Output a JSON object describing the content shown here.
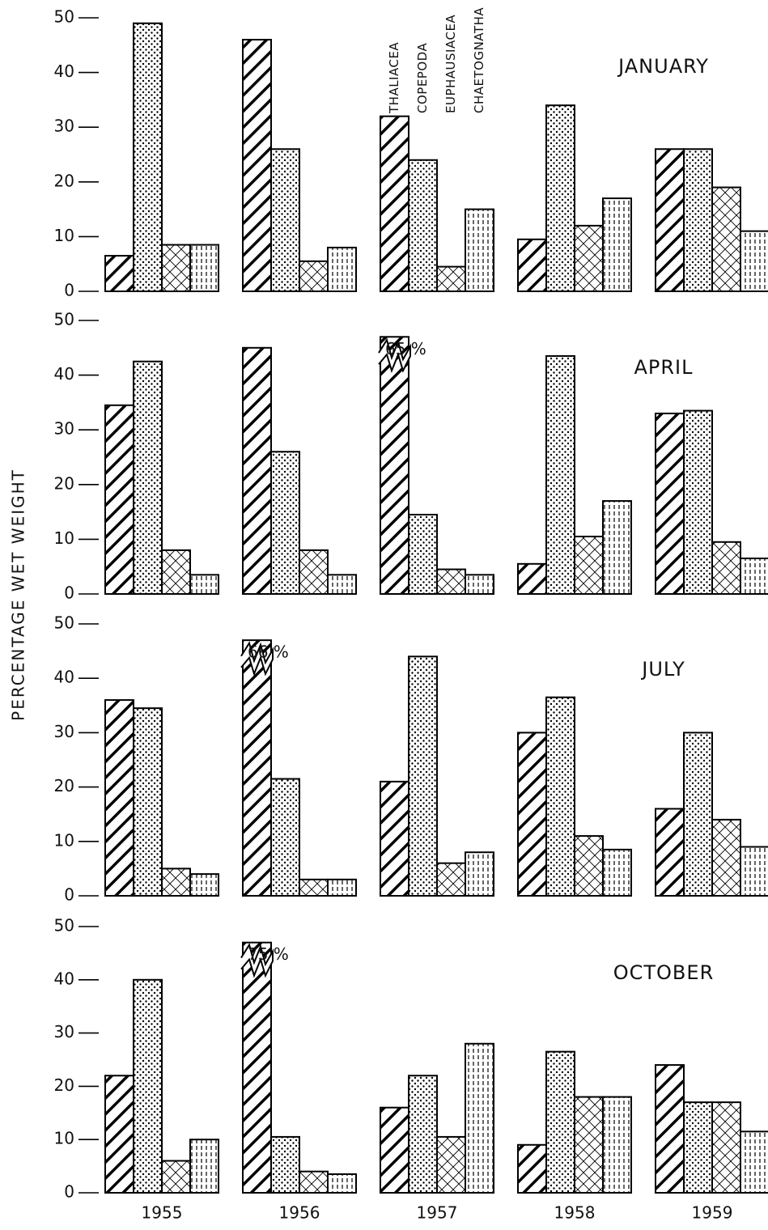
{
  "chart_data": [
    {
      "type": "bar",
      "title": "JANUARY",
      "ylabel": "PERCENTAGE WET WEIGHT",
      "ylim": [
        0,
        50
      ],
      "yticks": [
        0,
        10,
        20,
        30,
        40,
        50
      ],
      "series": [
        {
          "name": "THALIACEA",
          "pattern": "diagonal",
          "values": [
            6.5,
            46,
            32,
            9.5,
            26
          ]
        },
        {
          "name": "COPEPODA",
          "pattern": "dots",
          "values": [
            49,
            26,
            24,
            34,
            26
          ]
        },
        {
          "name": "EUPHAUSIACEA",
          "pattern": "crosshatch",
          "values": [
            8.5,
            5.5,
            4.5,
            12,
            19
          ]
        },
        {
          "name": "CHAETOGNATHA",
          "pattern": "vertical",
          "values": [
            8.5,
            8,
            15,
            17,
            11
          ]
        }
      ]
    },
    {
      "type": "bar",
      "title": "APRIL",
      "ylim": [
        0,
        50
      ],
      "yticks": [
        0,
        10,
        20,
        30,
        40,
        50
      ],
      "series": [
        {
          "pattern": "diagonal",
          "values": [
            34.5,
            45,
            65,
            5.5,
            33
          ],
          "value_labels": [
            null,
            null,
            "65 %",
            null,
            null
          ]
        },
        {
          "pattern": "dots",
          "values": [
            42.5,
            26,
            14.5,
            43.5,
            33.5
          ]
        },
        {
          "pattern": "crosshatch",
          "values": [
            8,
            8,
            4.5,
            10.5,
            9.5
          ]
        },
        {
          "pattern": "vertical",
          "values": [
            3.5,
            3.5,
            3.5,
            17,
            6.5
          ]
        }
      ]
    },
    {
      "type": "bar",
      "title": "JULY",
      "ylim": [
        0,
        50
      ],
      "yticks": [
        0,
        10,
        20,
        30,
        40,
        50
      ],
      "series": [
        {
          "pattern": "diagonal",
          "values": [
            36,
            66,
            21,
            30,
            16
          ],
          "value_labels": [
            null,
            "66 %",
            null,
            null,
            null
          ]
        },
        {
          "pattern": "dots",
          "values": [
            34.5,
            21.5,
            44,
            36.5,
            30
          ]
        },
        {
          "pattern": "crosshatch",
          "values": [
            5,
            3,
            6,
            11,
            14
          ]
        },
        {
          "pattern": "vertical",
          "values": [
            4,
            3,
            8,
            8.5,
            9
          ]
        }
      ]
    },
    {
      "type": "bar",
      "title": "OCTOBER",
      "ylim": [
        0,
        50
      ],
      "yticks": [
        0,
        10,
        20,
        30,
        40,
        50
      ],
      "categories": [
        "1955",
        "1956",
        "1957",
        "1958",
        "1959"
      ],
      "series": [
        {
          "pattern": "diagonal",
          "values": [
            22,
            75,
            16,
            9,
            24
          ],
          "value_labels": [
            null,
            "75 %",
            null,
            null,
            null
          ]
        },
        {
          "pattern": "dots",
          "values": [
            40,
            10.5,
            22,
            26.5,
            17
          ]
        },
        {
          "pattern": "crosshatch",
          "values": [
            6,
            4,
            10.5,
            18,
            17
          ]
        },
        {
          "pattern": "vertical",
          "values": [
            10,
            3.5,
            28,
            18,
            11.5
          ]
        }
      ]
    }
  ]
}
